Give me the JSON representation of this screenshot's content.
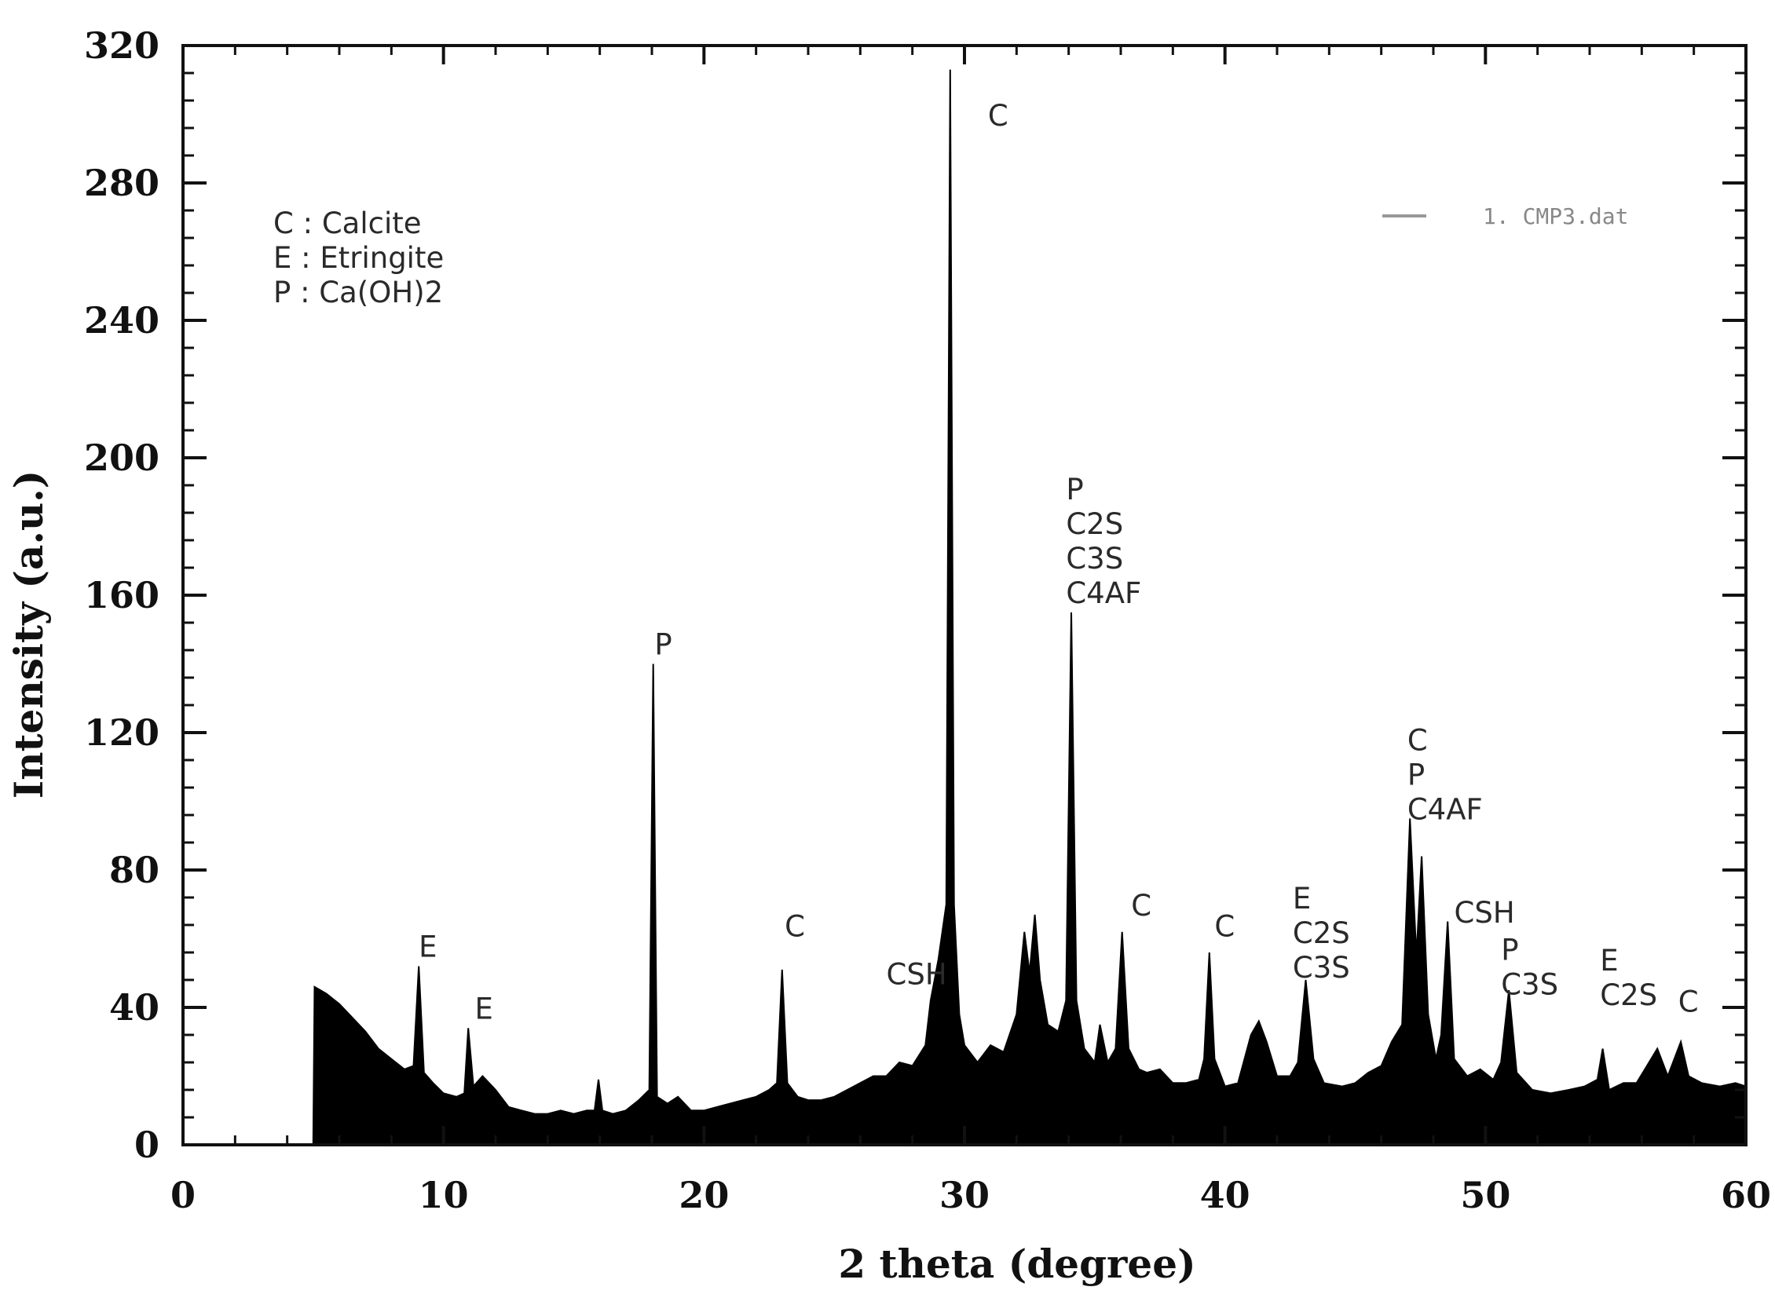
{
  "chart_data": {
    "type": "line",
    "title": "",
    "xlabel": "2 theta (degree)",
    "ylabel": "Intensity (a.u.)",
    "xlim": [
      0,
      60
    ],
    "ylim": [
      0,
      320
    ],
    "x_ticks": [
      "0",
      "10",
      "20",
      "30",
      "40",
      "50",
      "60"
    ],
    "y_ticks": [
      "0",
      "40",
      "80",
      "120",
      "160",
      "200",
      "240",
      "280",
      "320"
    ],
    "grid": false,
    "legend_position": "top-right",
    "series": [
      {
        "name": "1. CMP3.dat",
        "color": "#000000",
        "fill": "below-line",
        "points": [
          [
            0,
            0
          ],
          [
            5.0,
            0
          ],
          [
            5.05,
            46
          ],
          [
            5.5,
            44
          ],
          [
            6,
            41
          ],
          [
            6.5,
            37
          ],
          [
            7,
            33
          ],
          [
            7.5,
            28
          ],
          [
            8,
            25
          ],
          [
            8.5,
            22
          ],
          [
            8.85,
            23
          ],
          [
            9.05,
            52
          ],
          [
            9.25,
            21
          ],
          [
            9.6,
            18
          ],
          [
            10,
            15
          ],
          [
            10.5,
            14
          ],
          [
            10.8,
            15
          ],
          [
            10.95,
            34
          ],
          [
            11.15,
            17
          ],
          [
            11.5,
            20
          ],
          [
            12,
            16
          ],
          [
            12.5,
            11
          ],
          [
            13,
            10
          ],
          [
            13.5,
            9
          ],
          [
            14,
            9
          ],
          [
            14.5,
            10
          ],
          [
            15,
            9
          ],
          [
            15.5,
            10
          ],
          [
            15.8,
            10
          ],
          [
            15.95,
            19
          ],
          [
            16.1,
            10
          ],
          [
            16.5,
            9
          ],
          [
            17,
            10
          ],
          [
            17.5,
            13
          ],
          [
            17.9,
            16
          ],
          [
            18.05,
            140
          ],
          [
            18.2,
            14
          ],
          [
            18.6,
            12
          ],
          [
            19,
            14
          ],
          [
            19.5,
            10
          ],
          [
            20,
            10
          ],
          [
            20.5,
            11
          ],
          [
            21,
            12
          ],
          [
            21.5,
            13
          ],
          [
            22,
            14
          ],
          [
            22.5,
            16
          ],
          [
            22.8,
            18
          ],
          [
            23.0,
            51
          ],
          [
            23.2,
            18
          ],
          [
            23.6,
            14
          ],
          [
            24,
            13
          ],
          [
            24.5,
            13
          ],
          [
            25,
            14
          ],
          [
            25.5,
            16
          ],
          [
            26,
            18
          ],
          [
            26.5,
            20
          ],
          [
            27,
            20
          ],
          [
            27.5,
            24
          ],
          [
            28,
            23
          ],
          [
            28.5,
            29
          ],
          [
            28.7,
            42
          ],
          [
            29.0,
            54
          ],
          [
            29.3,
            70
          ],
          [
            29.45,
            313
          ],
          [
            29.6,
            70
          ],
          [
            29.8,
            38
          ],
          [
            30,
            29
          ],
          [
            30.5,
            24
          ],
          [
            31,
            29
          ],
          [
            31.5,
            27
          ],
          [
            32,
            38
          ],
          [
            32.3,
            62
          ],
          [
            32.5,
            50
          ],
          [
            32.7,
            67
          ],
          [
            32.9,
            48
          ],
          [
            33.2,
            35
          ],
          [
            33.6,
            33
          ],
          [
            33.9,
            42
          ],
          [
            34.1,
            155
          ],
          [
            34.3,
            42
          ],
          [
            34.6,
            28
          ],
          [
            35,
            24
          ],
          [
            35.2,
            35
          ],
          [
            35.5,
            24
          ],
          [
            35.8,
            28
          ],
          [
            36.05,
            62
          ],
          [
            36.3,
            28
          ],
          [
            36.7,
            22
          ],
          [
            37,
            21
          ],
          [
            37.5,
            22
          ],
          [
            38,
            18
          ],
          [
            38.5,
            18
          ],
          [
            39,
            19
          ],
          [
            39.2,
            25
          ],
          [
            39.4,
            56
          ],
          [
            39.6,
            25
          ],
          [
            40,
            17
          ],
          [
            40.5,
            18
          ],
          [
            41,
            32
          ],
          [
            41.3,
            36
          ],
          [
            41.6,
            30
          ],
          [
            42,
            20
          ],
          [
            42.5,
            20
          ],
          [
            42.8,
            24
          ],
          [
            43.1,
            48
          ],
          [
            43.4,
            25
          ],
          [
            43.8,
            18
          ],
          [
            44.5,
            17
          ],
          [
            45,
            18
          ],
          [
            45.5,
            21
          ],
          [
            46,
            23
          ],
          [
            46.4,
            30
          ],
          [
            46.8,
            35
          ],
          [
            47.1,
            95
          ],
          [
            47.35,
            55
          ],
          [
            47.55,
            84
          ],
          [
            47.8,
            38
          ],
          [
            48.1,
            25
          ],
          [
            48.3,
            32
          ],
          [
            48.55,
            65
          ],
          [
            48.8,
            25
          ],
          [
            49.3,
            20
          ],
          [
            49.8,
            22
          ],
          [
            50.3,
            19
          ],
          [
            50.6,
            24
          ],
          [
            50.9,
            45
          ],
          [
            51.2,
            21
          ],
          [
            51.8,
            16
          ],
          [
            52.5,
            15
          ],
          [
            53.2,
            16
          ],
          [
            53.8,
            17
          ],
          [
            54.3,
            19
          ],
          [
            54.5,
            28
          ],
          [
            54.75,
            16
          ],
          [
            55.3,
            18
          ],
          [
            55.8,
            18
          ],
          [
            56.2,
            23
          ],
          [
            56.6,
            28
          ],
          [
            57.0,
            20
          ],
          [
            57.5,
            30
          ],
          [
            57.8,
            20
          ],
          [
            58.3,
            18
          ],
          [
            59,
            17
          ],
          [
            59.6,
            18
          ],
          [
            60,
            17
          ]
        ]
      }
    ],
    "annotations": [
      {
        "lines": [
          "E"
        ],
        "x": 9.05,
        "y": 52
      },
      {
        "lines": [
          "E"
        ],
        "x": 11.2,
        "y": 34
      },
      {
        "lines": [
          "P"
        ],
        "x": 18.1,
        "y": 140
      },
      {
        "lines": [
          "C"
        ],
        "x": 23.1,
        "y": 58
      },
      {
        "lines": [
          "CSH"
        ],
        "x": 27.0,
        "y": 44
      },
      {
        "lines": [
          "C"
        ],
        "x": 30.9,
        "y": 294
      },
      {
        "lines": [
          "P",
          "C2S",
          "C3S",
          "C4AF"
        ],
        "x": 33.9,
        "y": 155
      },
      {
        "lines": [
          "C"
        ],
        "x": 36.4,
        "y": 64
      },
      {
        "lines": [
          "C"
        ],
        "x": 39.6,
        "y": 58
      },
      {
        "lines": [
          "E",
          "C2S",
          "C3S"
        ],
        "x": 42.6,
        "y": 46
      },
      {
        "lines": [
          "C",
          "P",
          "C4AF"
        ],
        "x": 47.0,
        "y": 92
      },
      {
        "lines": [
          "CSH"
        ],
        "x": 48.8,
        "y": 62
      },
      {
        "lines": [
          "P",
          "C3S"
        ],
        "x": 50.6,
        "y": 41
      },
      {
        "lines": [
          "E",
          "C2S"
        ],
        "x": 54.4,
        "y": 38
      },
      {
        "lines": [
          "C"
        ],
        "x": 57.4,
        "y": 36
      }
    ],
    "key": [
      "C : Calcite",
      "E : Etringite",
      "P : Ca(OH)2"
    ]
  }
}
